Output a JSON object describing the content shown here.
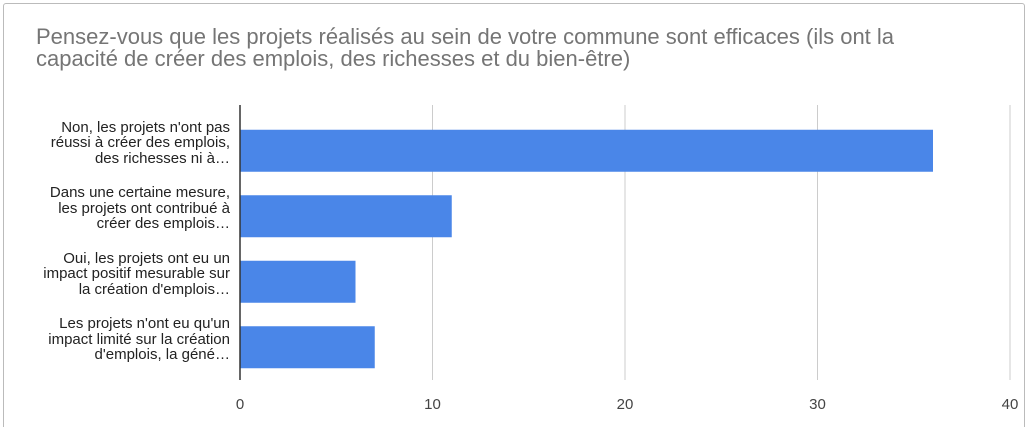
{
  "chart_data": {
    "type": "bar",
    "orientation": "horizontal",
    "title": "Pensez-vous que les projets réalisés au sein de votre commune sont efficaces (ils ont la capacité de créer des emplois, des richesses et du bien-être)",
    "categories": [
      "Non, les projets n'ont pas réussi à créer des emplois, des richesses ni à…",
      "Dans une certaine mesure, les projets ont contribué à créer des emplois…",
      "Oui, les projets ont eu un impact positif mesurable sur la création d'emplois…",
      "Les projets n'ont eu qu'un impact limité sur la création d'emplois, la géné…"
    ],
    "values": [
      36,
      11,
      6,
      7
    ],
    "color": "#4a86e8",
    "xlim": [
      0,
      40
    ],
    "xticks": [
      0,
      10,
      20,
      30,
      40
    ],
    "grid": true
  }
}
